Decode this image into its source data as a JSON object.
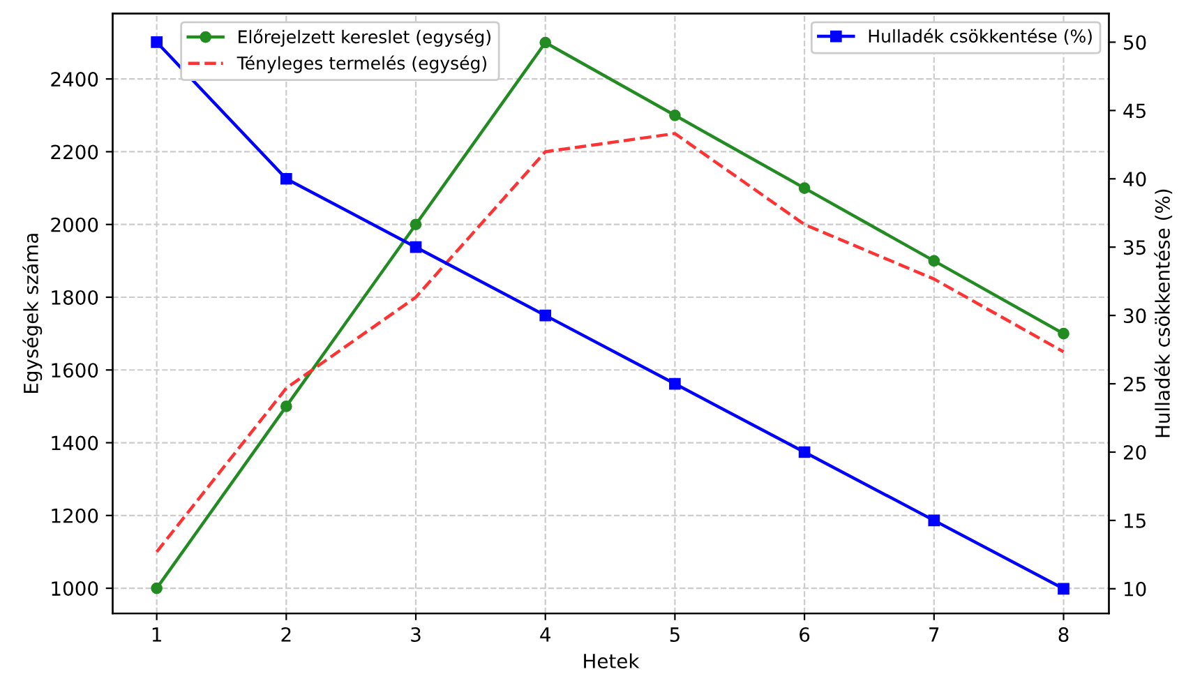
{
  "chart_data": {
    "type": "line",
    "xlabel": "Hetek",
    "ylabel": "Egységek száma",
    "y2label": "Hulladék csökkentése (%)",
    "x": [
      1,
      2,
      3,
      4,
      5,
      6,
      7,
      8
    ],
    "series": [
      {
        "name": "Előrejelzett kereslet (egység)",
        "color": "#228b22",
        "marker": "circle",
        "line_style": "solid",
        "values": [
          1000,
          1500,
          2000,
          2500,
          2300,
          2100,
          1900,
          1700
        ]
      },
      {
        "name": "Tényleges termelés (egység)",
        "color": "#ff3333",
        "marker": "none",
        "line_style": "dashed",
        "values": [
          1100,
          1550,
          1800,
          2200,
          2250,
          2000,
          1850,
          1650
        ]
      },
      {
        "name": "Hulladék csökkentése (%)",
        "color": "#0000ff",
        "marker": "square",
        "line_style": "solid",
        "axis": "y2",
        "values": [
          50,
          40,
          35,
          30,
          25,
          20,
          15,
          10
        ]
      }
    ],
    "xlim": [
      0.66,
      8.35
    ],
    "xticks": [
      1,
      2,
      3,
      4,
      5,
      6,
      7,
      8
    ],
    "ylim": [
      931,
      2580
    ],
    "yticks": [
      1000,
      1200,
      1400,
      1600,
      1800,
      2000,
      2200,
      2400
    ],
    "y2lim": [
      8.2,
      52.1
    ],
    "y2ticks": [
      10,
      15,
      20,
      25,
      30,
      35,
      40,
      45,
      50
    ],
    "grid": true,
    "legend": "top"
  }
}
